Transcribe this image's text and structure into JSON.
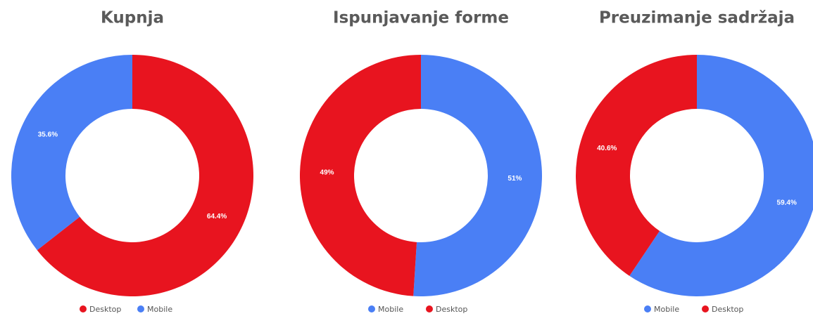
{
  "chart_data": [
    {
      "type": "donut",
      "title": "Kupnja",
      "categories": [
        "Desktop",
        "Mobile"
      ],
      "values": [
        64.4,
        35.6
      ],
      "value_labels": [
        "64.4%",
        "35.6%"
      ],
      "colors": [
        "#e8141f",
        "#4a7ff5"
      ]
    },
    {
      "type": "donut",
      "title": "Ispunjavanje forme",
      "categories": [
        "Mobile",
        "Desktop"
      ],
      "values": [
        51,
        49
      ],
      "value_labels": [
        "51%",
        "49%"
      ],
      "colors": [
        "#4a7ff5",
        "#e8141f"
      ]
    },
    {
      "type": "donut",
      "title": "Preuzimanje sadržaja",
      "categories": [
        "Mobile",
        "Desktop"
      ],
      "values": [
        59.4,
        40.6
      ],
      "value_labels": [
        "59.4%",
        "40.6%"
      ],
      "colors": [
        "#4a7ff5",
        "#e8141f"
      ]
    }
  ]
}
